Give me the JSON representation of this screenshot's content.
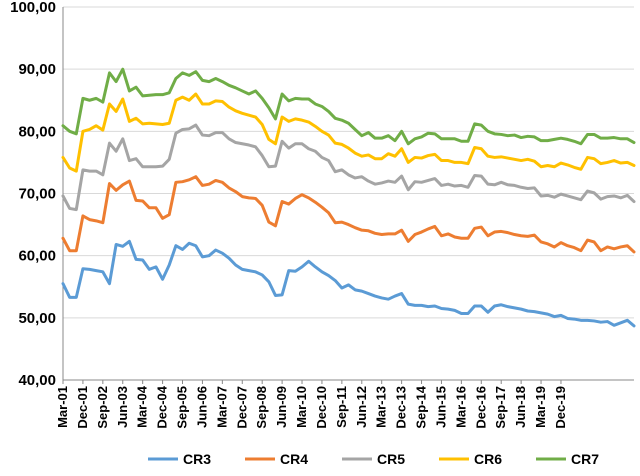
{
  "chart_data": {
    "type": "line",
    "title": "",
    "xlabel": "",
    "ylabel": "",
    "ylim": [
      40,
      100
    ],
    "y_ticks": [
      40,
      50,
      60,
      70,
      80,
      90,
      100
    ],
    "y_tick_labels": [
      "40,00",
      "50,00",
      "60,00",
      "70,00",
      "80,00",
      "90,00",
      "100,00"
    ],
    "x_tick_labels": [
      "Mar-01",
      "Dec-01",
      "Sep-02",
      "Jun-03",
      "Mar-04",
      "Dec-04",
      "Sep-05",
      "Jun-06",
      "Mar-07",
      "Dec-07",
      "Sep-08",
      "Jun-09",
      "Mar-10",
      "Dec-10",
      "Sep-11",
      "Jun-12",
      "Mar-13",
      "Dec-13",
      "Sep-14",
      "Jun-15",
      "Mar-16",
      "Dec-16",
      "Sep-17",
      "Jun-18",
      "Mar-19",
      "Dec-19"
    ],
    "x_tick_step": 3,
    "frequency": "monthly",
    "grid": "horizontal",
    "legend": "bottom",
    "series": [
      {
        "name": "CR3",
        "color": "#5B9BD5",
        "values": [
          55.5,
          53.3,
          53.3,
          57.9,
          57.8,
          57.6,
          57.4,
          55.5,
          61.8,
          61.5,
          62.3,
          59.4,
          59.3,
          57.8,
          58.2,
          56.2,
          58.5,
          61.6,
          61.0,
          62.0,
          61.6,
          59.8,
          60.0,
          60.9,
          60.4,
          59.6,
          58.5,
          57.8,
          57.6,
          57.4,
          56.9,
          55.8,
          53.6,
          53.7,
          57.6,
          57.5,
          58.2,
          59.1,
          58.2,
          57.4,
          56.8,
          56.0,
          54.8,
          55.3,
          54.5,
          54.3,
          53.9,
          53.5,
          53.2,
          53.0,
          53.5,
          53.9,
          52.2,
          52.0,
          52.0,
          51.8,
          51.9,
          51.5,
          51.4,
          51.2,
          50.7,
          50.7,
          51.9,
          51.9,
          50.9,
          51.9,
          52.1,
          51.8,
          51.6,
          51.4,
          51.1,
          51.0,
          50.8,
          50.6,
          50.2,
          50.4,
          49.9,
          49.8,
          49.6,
          49.6,
          49.5,
          49.3,
          49.4,
          48.8,
          49.2,
          49.6,
          48.7
        ]
      },
      {
        "name": "CR4",
        "color": "#ED7D31",
        "values": [
          62.8,
          60.8,
          60.8,
          66.4,
          65.8,
          65.6,
          65.3,
          71.6,
          70.5,
          71.4,
          72.0,
          68.9,
          68.8,
          67.7,
          67.7,
          66.0,
          66.6,
          71.8,
          71.9,
          72.2,
          72.7,
          71.3,
          71.5,
          72.1,
          71.8,
          70.9,
          70.3,
          69.5,
          69.3,
          69.2,
          68.1,
          65.4,
          64.8,
          68.7,
          68.3,
          69.2,
          69.8,
          69.3,
          68.6,
          67.8,
          66.9,
          65.3,
          65.4,
          65.0,
          64.5,
          64.1,
          64.0,
          63.6,
          63.4,
          63.5,
          63.5,
          64.1,
          62.3,
          63.4,
          63.8,
          64.3,
          64.7,
          63.2,
          63.5,
          63.0,
          62.8,
          62.8,
          64.4,
          64.6,
          63.2,
          63.8,
          63.9,
          63.7,
          63.4,
          63.2,
          63.1,
          63.3,
          62.2,
          61.9,
          61.4,
          62.1,
          61.6,
          61.3,
          60.8,
          62.5,
          62.2,
          60.8,
          61.4,
          61.1,
          61.4,
          61.6,
          60.6
        ]
      },
      {
        "name": "CR5",
        "color": "#A5A5A5",
        "values": [
          69.6,
          67.6,
          67.4,
          73.8,
          73.6,
          73.6,
          73.0,
          78.1,
          76.8,
          78.8,
          75.3,
          75.6,
          74.3,
          74.3,
          74.3,
          74.4,
          75.5,
          79.7,
          80.3,
          80.4,
          81.0,
          79.4,
          79.3,
          79.8,
          79.8,
          78.8,
          78.2,
          78.0,
          77.8,
          77.5,
          76.1,
          74.3,
          74.4,
          78.4,
          77.3,
          78.0,
          78.0,
          77.2,
          76.8,
          75.8,
          75.3,
          73.5,
          73.8,
          73.0,
          72.5,
          72.7,
          72.0,
          71.5,
          71.7,
          72.0,
          71.8,
          72.8,
          70.6,
          71.9,
          71.8,
          72.1,
          72.4,
          71.3,
          71.5,
          71.2,
          71.3,
          71.0,
          72.9,
          72.8,
          71.5,
          71.4,
          71.8,
          71.4,
          71.3,
          71.0,
          70.8,
          70.9,
          69.6,
          69.7,
          69.4,
          69.9,
          69.6,
          69.3,
          69.0,
          70.4,
          70.1,
          69.1,
          69.5,
          69.6,
          69.3,
          69.7,
          68.7
        ]
      },
      {
        "name": "CR6",
        "color": "#FFC000",
        "values": [
          75.8,
          74.1,
          73.6,
          80.0,
          80.3,
          80.9,
          80.2,
          84.4,
          83.2,
          85.2,
          81.6,
          82.1,
          81.2,
          81.3,
          81.2,
          81.1,
          81.3,
          85.0,
          85.5,
          85.0,
          86.0,
          84.4,
          84.4,
          84.9,
          84.8,
          83.9,
          83.3,
          82.9,
          82.6,
          82.3,
          81.1,
          78.7,
          78.0,
          82.3,
          81.6,
          82.0,
          81.8,
          81.5,
          80.8,
          80.0,
          79.4,
          78.1,
          77.9,
          77.3,
          76.5,
          76.0,
          76.2,
          75.6,
          75.6,
          76.4,
          76.0,
          77.2,
          75.0,
          75.8,
          75.7,
          76.1,
          76.3,
          75.3,
          75.3,
          75.0,
          75.0,
          74.8,
          77.4,
          77.2,
          76.0,
          75.8,
          75.9,
          75.7,
          75.5,
          75.3,
          75.5,
          75.2,
          74.3,
          74.5,
          74.3,
          74.9,
          74.6,
          74.2,
          73.9,
          75.8,
          75.6,
          74.8,
          75.0,
          75.3,
          74.9,
          75.0,
          74.5
        ]
      },
      {
        "name": "CR7",
        "color": "#70AD47",
        "values": [
          80.9,
          80.0,
          79.6,
          85.3,
          85.0,
          85.3,
          84.7,
          89.4,
          88.0,
          90.0,
          86.5,
          87.1,
          85.7,
          85.8,
          85.9,
          85.9,
          86.2,
          88.5,
          89.4,
          89.0,
          89.6,
          88.2,
          88.0,
          88.5,
          88.0,
          87.4,
          87.0,
          86.5,
          86.0,
          86.5,
          85.3,
          83.8,
          82.0,
          86.0,
          84.9,
          85.3,
          85.2,
          85.2,
          84.4,
          84.0,
          83.2,
          82.1,
          81.8,
          81.3,
          80.3,
          79.3,
          79.8,
          78.9,
          78.9,
          79.3,
          78.5,
          80.0,
          78.0,
          78.8,
          79.1,
          79.7,
          79.6,
          78.8,
          78.8,
          78.8,
          78.4,
          78.4,
          81.2,
          81.0,
          80.0,
          79.6,
          79.5,
          79.3,
          79.4,
          79.0,
          79.2,
          79.1,
          78.5,
          78.5,
          78.7,
          78.9,
          78.7,
          78.4,
          78.0,
          79.5,
          79.5,
          78.9,
          78.9,
          79.0,
          78.8,
          78.8,
          78.2
        ]
      }
    ]
  }
}
